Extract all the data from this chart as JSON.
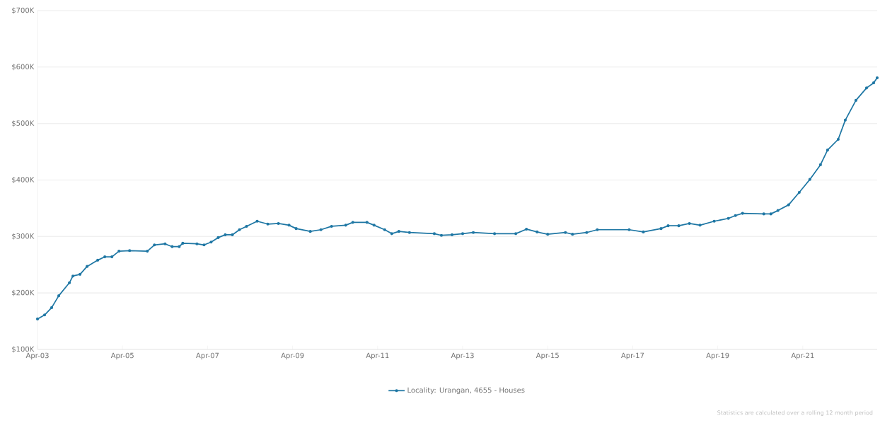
{
  "chart_data": {
    "type": "line",
    "xlim": [
      "2003-04",
      "2023-01"
    ],
    "ylim": [
      100,
      700
    ],
    "xticks": [
      {
        "value": "2003-04",
        "label": "Apr-03"
      },
      {
        "value": "2005-04",
        "label": "Apr-05"
      },
      {
        "value": "2007-04",
        "label": "Apr-07"
      },
      {
        "value": "2009-04",
        "label": "Apr-09"
      },
      {
        "value": "2011-04",
        "label": "Apr-11"
      },
      {
        "value": "2013-04",
        "label": "Apr-13"
      },
      {
        "value": "2015-04",
        "label": "Apr-15"
      },
      {
        "value": "2017-04",
        "label": "Apr-17"
      },
      {
        "value": "2019-04",
        "label": "Apr-19"
      },
      {
        "value": "2021-04",
        "label": "Apr-21"
      }
    ],
    "yticks": [
      {
        "value": 100,
        "label": "$100K"
      },
      {
        "value": 200,
        "label": "$200K"
      },
      {
        "value": 300,
        "label": "$300K"
      },
      {
        "value": 400,
        "label": "$400K"
      },
      {
        "value": 500,
        "label": "$500K"
      },
      {
        "value": 600,
        "label": "$600K"
      },
      {
        "value": 700,
        "label": "$700K"
      }
    ],
    "grid": "y",
    "legend": "bottom",
    "marker": "circle",
    "line_style": "solid",
    "annotations": [
      "Statistics are calculated over a rolling 12 month period"
    ],
    "series": [
      {
        "name": "Locality: Urangan, 4655 - Houses",
        "color": "#1f77a4",
        "x": [
          "2003-04",
          "2003-06",
          "2003-08",
          "2003-10",
          "2004-01",
          "2004-02",
          "2004-04",
          "2004-06",
          "2004-09",
          "2004-11",
          "2005-01",
          "2005-03",
          "2005-06",
          "2005-11",
          "2006-01",
          "2006-04",
          "2006-06",
          "2006-08",
          "2006-09",
          "2007-01",
          "2007-03",
          "2007-05",
          "2007-07",
          "2007-09",
          "2007-11",
          "2008-01",
          "2008-03",
          "2008-06",
          "2008-09",
          "2008-12",
          "2009-03",
          "2009-05",
          "2009-09",
          "2009-12",
          "2010-03",
          "2010-07",
          "2010-09",
          "2011-01",
          "2011-03",
          "2011-06",
          "2011-08",
          "2011-10",
          "2012-01",
          "2012-08",
          "2012-10",
          "2013-01",
          "2013-04",
          "2013-07",
          "2014-01",
          "2014-07",
          "2014-10",
          "2015-01",
          "2015-04",
          "2015-09",
          "2015-11",
          "2016-03",
          "2016-06",
          "2017-03",
          "2017-07",
          "2017-12",
          "2018-02",
          "2018-05",
          "2018-08",
          "2018-11",
          "2019-03",
          "2019-07",
          "2019-09",
          "2019-11",
          "2020-05",
          "2020-07",
          "2020-09",
          "2020-12",
          "2021-03",
          "2021-06",
          "2021-09",
          "2021-11",
          "2022-02",
          "2022-04",
          "2022-07",
          "2022-10",
          "2022-12",
          "2023-01"
        ],
        "values": [
          154,
          161,
          174,
          195,
          218,
          230,
          233,
          247,
          258,
          264,
          264,
          274,
          275,
          274,
          285,
          287,
          282,
          282,
          288,
          287,
          285,
          290,
          298,
          303,
          303,
          312,
          318,
          327,
          322,
          323,
          320,
          314,
          309,
          312,
          318,
          320,
          325,
          325,
          320,
          312,
          305,
          309,
          307,
          305,
          302,
          303,
          305,
          307,
          305,
          305,
          313,
          308,
          304,
          307,
          304,
          307,
          312,
          312,
          308,
          314,
          319,
          319,
          323,
          320,
          327,
          332,
          337,
          341,
          340,
          340,
          346,
          356,
          378,
          401,
          427,
          453,
          472,
          506,
          541,
          563,
          572,
          581
        ]
      }
    ]
  }
}
